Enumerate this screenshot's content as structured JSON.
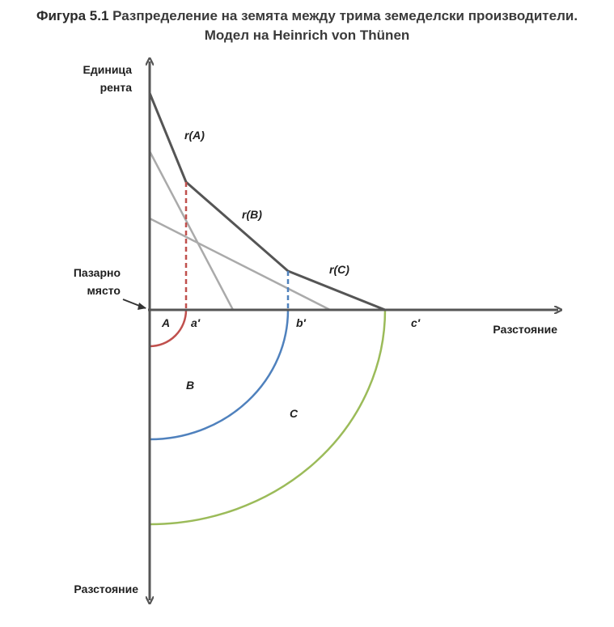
{
  "title": {
    "figure_label": "Фигура 5.1",
    "line1": "Разпределение на земята между трима земеделски производители.",
    "line2": "Модел на Heinrich von Thünen"
  },
  "axes": {
    "y_label_line1": "Единица",
    "y_label_line2": "рента",
    "x_label": "Разстояние",
    "y_down_label": "Разстояние",
    "market_line1": "Пазарно",
    "market_line2": "място"
  },
  "curves": {
    "rA": "r(A)",
    "rB": "r(B)",
    "rC": "r(C)"
  },
  "points": {
    "a": "a′",
    "b": "b′",
    "c": "c′"
  },
  "zones": {
    "A": "A",
    "B": "B",
    "C": "C"
  },
  "colors": {
    "axis": "#555555",
    "envelope": "#555555",
    "bid_rent_light": "#aaaaaa",
    "zone_A": "#c0504d",
    "zone_B": "#4f81bd",
    "zone_C": "#9bbb59"
  }
}
